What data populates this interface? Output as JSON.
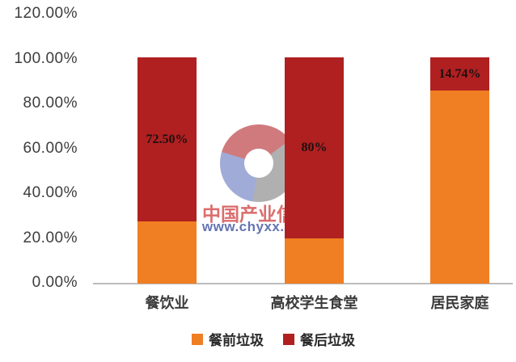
{
  "watermark": {
    "line1": "中国产业信息",
    "line2": "www.chyxx.com",
    "logo": "chyxx-swirl-logo",
    "logo_colors": {
      "red": "#c4555b",
      "blue": "#8694cd",
      "gray": "#9b9b9b"
    }
  },
  "chart_data": {
    "type": "bar",
    "stacked": true,
    "title": "",
    "xlabel": "",
    "ylabel": "",
    "categories": [
      "餐饮业",
      "高校学生食堂",
      "居民家庭"
    ],
    "series": [
      {
        "name": "餐前垃圾",
        "color": "#F07E23",
        "values": [
          27.5,
          20.0,
          85.26
        ]
      },
      {
        "name": "餐后垃圾",
        "color": "#B02021",
        "values": [
          72.5,
          80.0,
          14.74
        ]
      }
    ],
    "data_labels": [
      "72.50%",
      "80%",
      "14.74%"
    ],
    "data_labels_on_series": "餐后垃圾",
    "ytick_labels": [
      "0.00%",
      "20.00%",
      "40.00%",
      "60.00%",
      "80.00%",
      "100.00%",
      "120.00%"
    ],
    "ylim": [
      0,
      120
    ],
    "grid": false,
    "legend_position": "bottom",
    "axis_line_color": "#bcbcbc",
    "background": "#ffffff"
  }
}
